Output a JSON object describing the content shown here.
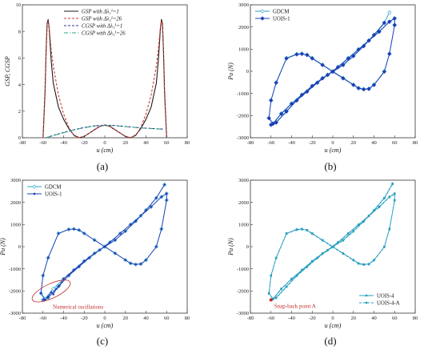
{
  "panel_labels": {
    "a": "(a)",
    "b": "(b)",
    "c": "(c)",
    "d": "(d)"
  },
  "colors": {
    "gsp_1": "#1a1a1a",
    "gsp_26": "#d23a3a",
    "cgsp_1": "#2b2b9e",
    "cgsp_26": "#2fa87a",
    "gdcm": "#2a9fc0",
    "uois": "#1f3fb8",
    "annotation": "#c02b2b"
  },
  "chart_data": [
    {
      "panel": "a",
      "type": "line",
      "xlabel": "u (cm)",
      "ylabel": "GSP, CGSP",
      "xlim": [
        -80,
        80
      ],
      "ylim": [
        0,
        10
      ],
      "xticks": [
        -80,
        -60,
        -40,
        -20,
        0,
        20,
        40,
        60,
        80
      ],
      "yticks": [
        0,
        2,
        4,
        6,
        8,
        10
      ],
      "legend_position": "top-center",
      "legend": [
        "GSP with Δλ₁¹=1",
        "GSP with Δλ₁¹=26",
        "CGSP with Δλ₁¹=1",
        "CGSP with Δλ₁¹=26"
      ],
      "series": [
        {
          "name": "GSP with Δλ₁¹=1",
          "style": "solid",
          "x": [
            -60,
            -58,
            -57,
            -56,
            -55,
            -54,
            -52,
            -50,
            -45,
            -40,
            -35,
            -30,
            -25,
            -20,
            -15,
            -10,
            -5,
            0,
            5,
            10,
            15,
            20,
            25,
            30,
            35,
            40,
            45,
            50,
            52,
            54,
            55,
            56,
            57,
            58,
            60
          ],
          "y": [
            0,
            3.5,
            6.5,
            8.6,
            8.9,
            8.2,
            5.8,
            4.1,
            2.3,
            1.4,
            0.7,
            0.2,
            0,
            0.1,
            0.35,
            0.6,
            0.85,
            0.95,
            0.85,
            0.6,
            0.35,
            0.1,
            0,
            0.2,
            0.7,
            1.4,
            2.3,
            4.1,
            5.8,
            8.2,
            8.9,
            8.6,
            6.5,
            3.5,
            0
          ]
        },
        {
          "name": "GSP with Δλ₁¹=26",
          "style": "dash",
          "x": [
            -60,
            -58,
            -57,
            -56,
            -55,
            -54,
            -52,
            -50,
            -45,
            -40,
            -35,
            -30,
            -25,
            -20,
            -15,
            -10,
            -5,
            0,
            5,
            10,
            15,
            20,
            25,
            30,
            35,
            40,
            45,
            50,
            52,
            54,
            55,
            56,
            57,
            58,
            60
          ],
          "y": [
            0,
            3.2,
            6.2,
            8.5,
            8.8,
            8.3,
            6.6,
            5.4,
            3.2,
            1.8,
            0.8,
            0.15,
            0,
            0.1,
            0.35,
            0.6,
            0.85,
            0.95,
            0.85,
            0.6,
            0.35,
            0.1,
            0,
            0.15,
            0.8,
            1.8,
            3.2,
            5.4,
            6.6,
            8.3,
            8.8,
            8.5,
            6.2,
            3.2,
            0
          ]
        },
        {
          "name": "CGSP with Δλ₁¹=1",
          "style": "dash",
          "x": [
            -57,
            -50,
            -40,
            -30,
            -20,
            -10,
            0,
            10,
            20,
            30,
            40,
            50,
            57
          ],
          "y": [
            0,
            0.18,
            0.4,
            0.6,
            0.78,
            0.9,
            0.95,
            0.92,
            0.85,
            0.78,
            0.72,
            0.68,
            0.65
          ]
        },
        {
          "name": "CGSP with Δλ₁¹=26",
          "style": "dashdot",
          "x": [
            -57,
            -50,
            -40,
            -30,
            -20,
            -10,
            0,
            10,
            20,
            30,
            40,
            50,
            57
          ],
          "y": [
            0,
            0.17,
            0.38,
            0.58,
            0.76,
            0.88,
            0.93,
            0.9,
            0.84,
            0.77,
            0.71,
            0.67,
            0.64
          ]
        }
      ]
    },
    {
      "panel": "b",
      "type": "line",
      "xlabel": "u (cm)",
      "ylabel": "Pu (N)",
      "xlim": [
        -80,
        80
      ],
      "ylim": [
        -3000,
        3000
      ],
      "xticks": [
        -80,
        -60,
        -40,
        -20,
        0,
        20,
        40,
        60,
        80
      ],
      "yticks": [
        -3000,
        -2000,
        -1000,
        0,
        1000,
        2000,
        3000
      ],
      "legend_position": "top-left",
      "legend": [
        "GDCM",
        "UOIS-1"
      ],
      "series": [
        {
          "name": "GDCM",
          "marker": "diamond",
          "x": [
            -60,
            -55,
            -45,
            -35,
            -25,
            -15,
            -5,
            5,
            15,
            25,
            35,
            45,
            55,
            60,
            60,
            55,
            50,
            40,
            35,
            30,
            25,
            20,
            10,
            0,
            -10,
            -20,
            -25,
            -30,
            -35,
            -45,
            -55,
            -60,
            -62,
            -58,
            -50,
            -40,
            -30,
            -20,
            -10,
            0,
            10,
            20,
            30,
            40,
            50,
            55
          ],
          "y": [
            -2400,
            -2300,
            -1800,
            -1300,
            -900,
            -500,
            -150,
            200,
            600,
            1000,
            1400,
            1800,
            2250,
            2400,
            2100,
            800,
            0,
            -600,
            -780,
            -800,
            -750,
            -600,
            -300,
            0,
            300,
            600,
            750,
            800,
            780,
            600,
            -500,
            -1300,
            -2100,
            -2350,
            -1900,
            -1450,
            -1050,
            -650,
            -300,
            0,
            300,
            700,
            1150,
            1650,
            2200,
            2650
          ]
        },
        {
          "name": "UOIS-1",
          "marker": "diamond-filled",
          "x": [
            -60,
            -55,
            -45,
            -35,
            -25,
            -15,
            -5,
            5,
            15,
            25,
            35,
            45,
            55,
            60,
            60,
            55,
            50,
            40,
            35,
            30,
            25,
            20,
            10,
            0,
            -10,
            -20,
            -25,
            -30,
            -35,
            -45,
            -55,
            -60,
            -62,
            -58,
            -50,
            -40,
            -30,
            -20,
            -10,
            0,
            10,
            20,
            30,
            40,
            50
          ],
          "y": [
            -2420,
            -2320,
            -1820,
            -1320,
            -920,
            -520,
            -170,
            180,
            580,
            980,
            1380,
            1780,
            2230,
            2380,
            2080,
            780,
            -20,
            -620,
            -800,
            -820,
            -770,
            -620,
            -320,
            -20,
            280,
            580,
            730,
            780,
            760,
            580,
            -520,
            -1320,
            -2120,
            -2370,
            -1920,
            -1470,
            -1070,
            -670,
            -320,
            -20,
            280,
            680,
            1130,
            1630,
            2180
          ]
        }
      ]
    },
    {
      "panel": "c",
      "type": "line",
      "xlabel": "u (cm)",
      "ylabel": "Pu (N)",
      "xlim": [
        -80,
        80
      ],
      "ylim": [
        -3000,
        3000
      ],
      "xticks": [
        -80,
        -60,
        -40,
        -20,
        0,
        20,
        40,
        60,
        80
      ],
      "yticks": [
        -3000,
        -2000,
        -1000,
        0,
        1000,
        2000,
        3000
      ],
      "legend_position": "top-left",
      "legend": [
        "GDCM",
        "UOIS-1"
      ],
      "annotation": "Numerical oscillations",
      "annotation_ellipse_center": [
        -52,
        -2000
      ],
      "series": [
        {
          "name": "GDCM",
          "marker": "diamond",
          "x": [
            -60,
            -55,
            -45,
            -35,
            -25,
            -15,
            -5,
            5,
            15,
            25,
            35,
            45,
            55,
            60,
            60,
            55,
            50,
            40,
            35,
            30,
            25,
            20,
            10,
            0,
            -10,
            -20,
            -25,
            -30,
            -35,
            -45,
            -55,
            -60,
            -62,
            -58,
            -50,
            -40,
            -30,
            -20,
            -10,
            0,
            10,
            20,
            30,
            40,
            50,
            58
          ],
          "y": [
            -2400,
            -2300,
            -1800,
            -1300,
            -900,
            -500,
            -150,
            200,
            600,
            1000,
            1400,
            1800,
            2250,
            2400,
            2100,
            800,
            0,
            -600,
            -780,
            -800,
            -750,
            -600,
            -300,
            0,
            300,
            600,
            750,
            800,
            780,
            600,
            -500,
            -1300,
            -2100,
            -2350,
            -1900,
            -1450,
            -1050,
            -650,
            -300,
            0,
            300,
            700,
            1150,
            1650,
            2200,
            2800
          ]
        },
        {
          "name": "UOIS-1",
          "marker": "dot",
          "x": [
            -60,
            -55,
            -45,
            -35,
            -25,
            -15,
            -5,
            5,
            15,
            25,
            35,
            45,
            55,
            60,
            60,
            55,
            50,
            40,
            35,
            30,
            25,
            20,
            10,
            0,
            -10,
            -20,
            -25,
            -30,
            -35,
            -45,
            -55,
            -60,
            -62,
            -58,
            -55,
            -52,
            -50,
            -47,
            -44,
            -40,
            -30,
            -20,
            -10,
            0,
            10,
            20,
            30,
            40,
            50,
            58
          ],
          "y": [
            -2400,
            -2300,
            -1800,
            -1300,
            -900,
            -500,
            -150,
            200,
            600,
            1000,
            1400,
            1800,
            2250,
            2400,
            2100,
            800,
            0,
            -600,
            -780,
            -800,
            -750,
            -600,
            -300,
            0,
            300,
            600,
            750,
            800,
            780,
            600,
            -500,
            -1300,
            -2100,
            -2400,
            -2250,
            -2050,
            -2150,
            -1900,
            -1750,
            -1450,
            -1050,
            -650,
            -300,
            0,
            300,
            700,
            1150,
            1650,
            2200,
            2800
          ]
        }
      ]
    },
    {
      "panel": "d",
      "type": "line",
      "xlabel": "u (cm)",
      "ylabel": "Pu (N)",
      "xlim": [
        -80,
        80
      ],
      "ylim": [
        -3000,
        3000
      ],
      "xticks": [
        -80,
        -60,
        -40,
        -20,
        0,
        20,
        40,
        60,
        80
      ],
      "yticks": [
        -3000,
        -2000,
        -1000,
        0,
        1000,
        2000,
        3000
      ],
      "legend_position": "bottom-right",
      "legend": [
        "UOIS-4",
        "UOIS-4-A"
      ],
      "annotation": "Snap-back point A",
      "annotation_point": [
        -60,
        -2400
      ],
      "series": [
        {
          "name": "UOIS-4",
          "marker": "square-small",
          "x": [
            -60,
            -55,
            -45,
            -35,
            -25,
            -15,
            -5,
            5,
            15,
            25,
            35,
            45,
            55,
            60,
            60,
            55,
            50,
            40,
            35,
            30,
            25,
            20,
            10,
            0,
            -10,
            -20,
            -25,
            -30,
            -35,
            -45,
            -55,
            -60,
            -62,
            -58,
            -50,
            -40,
            -30,
            -20,
            -10,
            0,
            10,
            20,
            30,
            40,
            50,
            58
          ],
          "y": [
            -2400,
            -2300,
            -1800,
            -1300,
            -900,
            -500,
            -150,
            200,
            600,
            1000,
            1400,
            1800,
            2250,
            2400,
            2100,
            800,
            0,
            -600,
            -780,
            -800,
            -750,
            -600,
            -300,
            0,
            300,
            600,
            750,
            800,
            780,
            600,
            -500,
            -1300,
            -2100,
            -2350,
            -1900,
            -1450,
            -1050,
            -650,
            -300,
            0,
            300,
            700,
            1150,
            1650,
            2200,
            2850
          ]
        },
        {
          "name": "UOIS-4-A",
          "marker": "dot-dash",
          "x": [
            -60,
            -55,
            -45,
            -35,
            -25,
            -15,
            -5,
            5,
            15,
            25,
            35,
            45,
            55,
            60,
            60,
            55,
            50,
            40,
            35,
            30,
            25,
            20,
            10,
            0,
            -10,
            -20,
            -25,
            -30,
            -35,
            -45,
            -55,
            -60,
            -62,
            -58,
            -50,
            -40,
            -30,
            -20,
            -10,
            0,
            10,
            20,
            30,
            40,
            50,
            58
          ],
          "y": [
            -2420,
            -2320,
            -1820,
            -1320,
            -920,
            -520,
            -170,
            180,
            580,
            980,
            1380,
            1780,
            2230,
            2380,
            2080,
            780,
            -20,
            -620,
            -800,
            -820,
            -770,
            -620,
            -320,
            -20,
            280,
            580,
            730,
            780,
            760,
            580,
            -520,
            -1320,
            -2120,
            -2370,
            -1920,
            -1470,
            -1070,
            -670,
            -320,
            -20,
            280,
            680,
            1130,
            1630,
            2180,
            2820
          ]
        }
      ]
    }
  ]
}
